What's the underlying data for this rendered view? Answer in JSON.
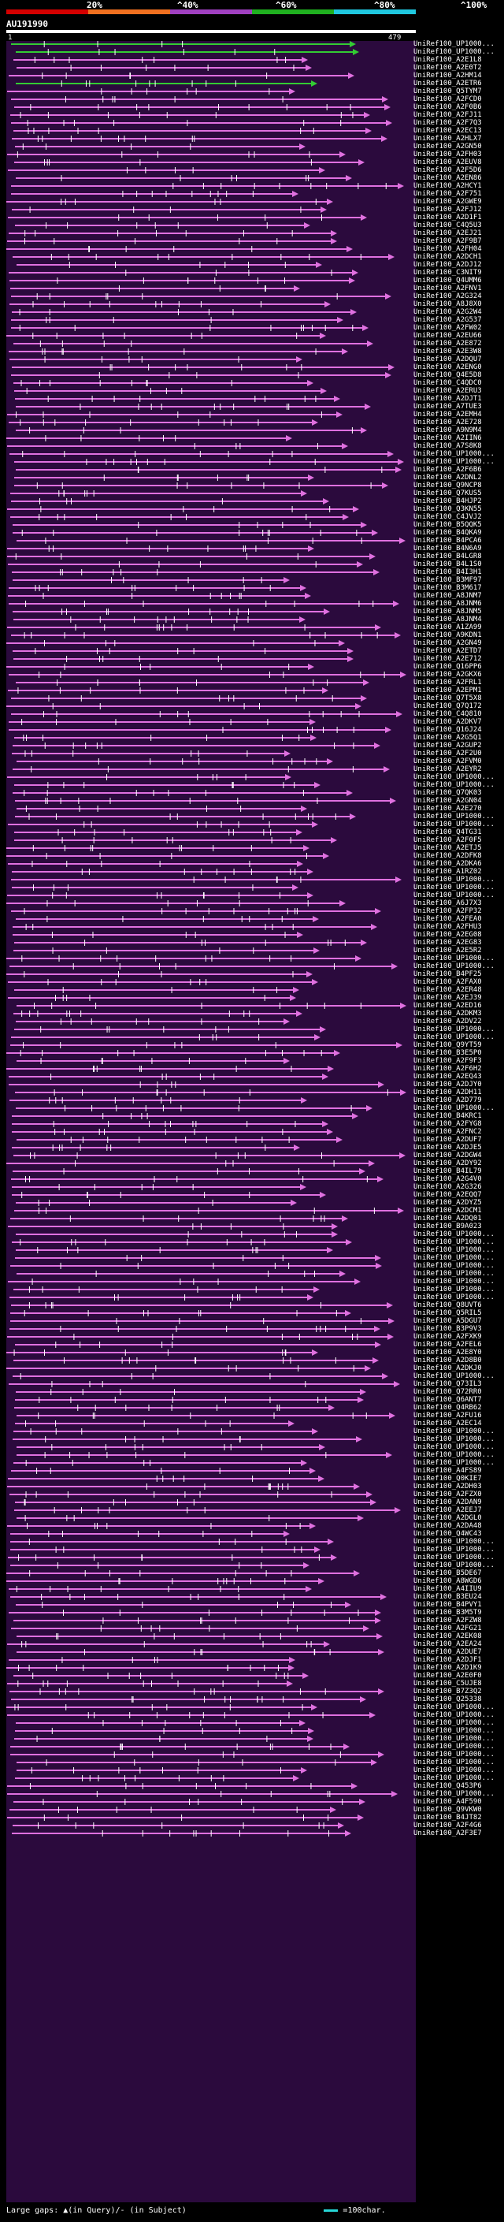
{
  "scale": {
    "labels": [
      "20%",
      "^40%",
      "^60%",
      "^80%",
      "^100%"
    ],
    "colors": [
      "#d40000",
      "#f07020",
      "#a040c0",
      "#20b020",
      "#20c8e0"
    ]
  },
  "query": {
    "id": "AU191990",
    "start": "1",
    "end": "479"
  },
  "colors": {
    "background": "#000000",
    "panel": "#2b0a3d",
    "hit": "#e070e0",
    "best_hit": "#33cc33",
    "bar_white": "#ffffff",
    "gap": "#27d7d7"
  },
  "hits": [
    "UniRef100_UP1000...",
    "UniRef100_UP1000...",
    "UniRef100_A2E1L8",
    "UniRef100_A2E0T2",
    "UniRef100_A2HM14",
    "UniRef100_A2ETR6",
    "UniRef100_Q5TYM7",
    "UniRef100_A2FCD0",
    "UniRef100_A2F0B6",
    "UniRef100_A2FJ11",
    "UniRef100_A2F7Q3",
    "UniRef100_A2EC13",
    "UniRef100_A2HLX7",
    "UniRef100_A2GN50",
    "UniRef100_A2FH03",
    "UniRef100_A2EUV8",
    "UniRef100_A2F5D6",
    "UniRef100_A2EN86",
    "UniRef100_A2HCY1",
    "UniRef100_A2F751",
    "UniRef100_A2GWE9",
    "UniRef100_A2FJ12",
    "UniRef100_A2D1F1",
    "UniRef100_C4Q5U3",
    "UniRef100_A2EJ21",
    "UniRef100_A2F9B7",
    "UniRef100_A2FH04",
    "UniRef100_A2DCH1",
    "UniRef100_A2DJ12",
    "UniRef100_C3NIT9",
    "UniRef100_Q4UMM6",
    "UniRef100_A2FNV1",
    "UniRef100_A2G324",
    "UniRef100_A8J8X0",
    "UniRef100_A2G2W4",
    "UniRef100_A2G537",
    "UniRef100_A2FW02",
    "UniRef100_A2EU66",
    "UniRef100_A2E872",
    "UniRef100_A2E3W8",
    "UniRef100_A2DQU7",
    "UniRef100_A2ENG0",
    "UniRef100_Q4E5D8",
    "UniRef100_C4QDC0",
    "UniRef100_A2ERU3",
    "UniRef100_A2DJT1",
    "UniRef100_A7TUE3",
    "UniRef100_A2EMH4",
    "UniRef100_A2E728",
    "UniRef100_A9N9M4",
    "UniRef100_A2IIN6",
    "UniRef100_A7S8K8",
    "UniRef100_UP1000...",
    "UniRef100_UP1000...",
    "UniRef100_A2F6B6",
    "UniRef100_A2DNL2",
    "UniRef100_Q9NCP8",
    "UniRef100_Q7KUS5",
    "UniRef100_B4HJP2",
    "UniRef100_Q3KN55",
    "UniRef100_C4JVJ2",
    "UniRef100_B5QQK5",
    "UniRef100_B4QKA9",
    "UniRef100_B4PCA6",
    "UniRef100_B4N6A9",
    "UniRef100_B4LGR8",
    "UniRef100_B4L1S0",
    "UniRef100_B4I3H1",
    "UniRef100_B3MF97",
    "UniRef100_B3M617",
    "UniRef100_A8JNM7",
    "UniRef100_A8JNM6",
    "UniRef100_A8JNM5",
    "UniRef100_A8JNM4",
    "UniRef100_A1ZA99",
    "UniRef100_A9KDN1",
    "UniRef100_A2GN49",
    "UniRef100_A2ETD7",
    "UniRef100_A2E712",
    "UniRef100_Q16PP6",
    "UniRef100_A2GKX6",
    "UniRef100_A2FRL1",
    "UniRef100_A2EPM1",
    "UniRef100_Q7T5X8",
    "UniRef100_Q7Q172",
    "UniRef100_C4Q810",
    "UniRef100_A2DKV7",
    "UniRef100_Q16J24",
    "UniRef100_A2G5Q1",
    "UniRef100_A2GUP2",
    "UniRef100_A2F2U0",
    "UniRef100_A2FVM0",
    "UniRef100_A2EYR2",
    "UniRef100_UP1000...",
    "UniRef100_UP1000...",
    "UniRef100_Q7QK03",
    "UniRef100_A2GN04",
    "UniRef100_A2E270",
    "UniRef100_UP1000...",
    "UniRef100_UP1000...",
    "UniRef100_Q4TG31",
    "UniRef100_A2F0F5",
    "UniRef100_A2ETJ5",
    "UniRef100_A2DFK8",
    "UniRef100_A2DKA6",
    "UniRef100_A1RZ02",
    "UniRef100_UP1000...",
    "UniRef100_UP1000...",
    "UniRef100_UP1000...",
    "UniRef100_A6J7X3",
    "UniRef100_A2FP32",
    "UniRef100_A2FEA0",
    "UniRef100_A2FHU3",
    "UniRef100_A2EG08",
    "UniRef100_A2EG83",
    "UniRef100_A2E5R2",
    "UniRef100_UP1000...",
    "UniRef100_UP1000...",
    "UniRef100_B4PF25",
    "UniRef100_A2FAX0",
    "UniRef100_A2ER48",
    "UniRef100_A2EJ39",
    "UniRef100_A2ED16",
    "UniRef100_A2DKM3",
    "UniRef100_A2DV22",
    "UniRef100_UP1000...",
    "UniRef100_UP1000...",
    "UniRef100_Q9YT59",
    "UniRef100_B3E5P0",
    "UniRef100_A2F9F3",
    "UniRef100_A2F6H2",
    "UniRef100_A2EQ43",
    "UniRef100_A2DJY0",
    "UniRef100_A2DH11",
    "UniRef100_A2D779",
    "UniRef100_UP1000...",
    "UniRef100_B4KRC1",
    "UniRef100_A2FYG8",
    "UniRef100_A2FNC2",
    "UniRef100_A2DUF7",
    "UniRef100_A2DJE5",
    "UniRef100_A2DGW4",
    "UniRef100_A2DY92",
    "UniRef100_B4IL79",
    "UniRef100_A2G4V0",
    "UniRef100_A2G326",
    "UniRef100_A2EQQ7",
    "UniRef100_A2DYZ5",
    "UniRef100_A2DCM1",
    "UniRef100_A2DQ01",
    "UniRef100_B9A023",
    "UniRef100_UP1000...",
    "UniRef100_UP1000...",
    "UniRef100_UP1000...",
    "UniRef100_UP1000...",
    "UniRef100_UP1000...",
    "UniRef100_UP1000...",
    "UniRef100_UP1000...",
    "UniRef100_UP1000...",
    "UniRef100_UP1000...",
    "UniRef100_Q8UVT6",
    "UniRef100_Q5RIL5",
    "UniRef100_A5DGU7",
    "UniRef100_B3P9V3",
    "UniRef100_A2FXK9",
    "UniRef100_A2FEL6",
    "UniRef100_A2E8Y0",
    "UniRef100_A2D8B0",
    "UniRef100_A2DKJ0",
    "UniRef100_UP1000...",
    "UniRef100_Q73IL3",
    "UniRef100_Q72RR0",
    "UniRef100_Q6ANT7",
    "UniRef100_Q4RB62",
    "UniRef100_A2FU16",
    "UniRef100_A2EC14",
    "UniRef100_UP1000...",
    "UniRef100_UP1000...",
    "UniRef100_UP1000...",
    "UniRef100_UP1000...",
    "UniRef100_UP1000...",
    "UniRef100_A4FS89",
    "UniRef100_Q0KIE7",
    "UniRef100_A2DH03",
    "UniRef100_A2FZX0",
    "UniRef100_A2DAN9",
    "UniRef100_A2EEJ7",
    "UniRef100_A2DGL0",
    "UniRef100_A2DA48",
    "UniRef100_Q4WC43",
    "UniRef100_UP1000...",
    "UniRef100_UP1000...",
    "UniRef100_UP1000...",
    "UniRef100_UP1000...",
    "UniRef100_B5DE67",
    "UniRef100_A8WGD6",
    "UniRef100_A4IIU9",
    "UniRef100_B3EU24",
    "UniRef100_B4PVY1",
    "UniRef100_B3M5T9",
    "UniRef100_A2FZW8",
    "UniRef100_A2FG21",
    "UniRef100_A2EK08",
    "UniRef100_A2EA24",
    "UniRef100_A2DUE7",
    "UniRef100_A2DJF1",
    "UniRef100_A2D1K9",
    "UniRef100_A2E0F0",
    "UniRef100_C5UJE8",
    "UniRef100_B7Z3Q2",
    "UniRef100_Q25338",
    "UniRef100_UP1000...",
    "UniRef100_UP1000...",
    "UniRef100_UP1000...",
    "UniRef100_UP1000...",
    "UniRef100_UP1000...",
    "UniRef100_UP1000...",
    "UniRef100_UP1000...",
    "UniRef100_UP1000...",
    "UniRef100_UP1000...",
    "UniRef100_UP1000...",
    "UniRef100_Q453P6",
    "UniRef100_UP1000...",
    "UniRef100_A4F590",
    "UniRef100_Q9VKW0",
    "UniRef100_B4JT82",
    "UniRef100_A2F4G6",
    "UniRef100_A2F3E7"
  ],
  "legend": {
    "text": "Large gaps: ▲(in Query)/- (in Subject)",
    "scale_text": "=100char."
  }
}
